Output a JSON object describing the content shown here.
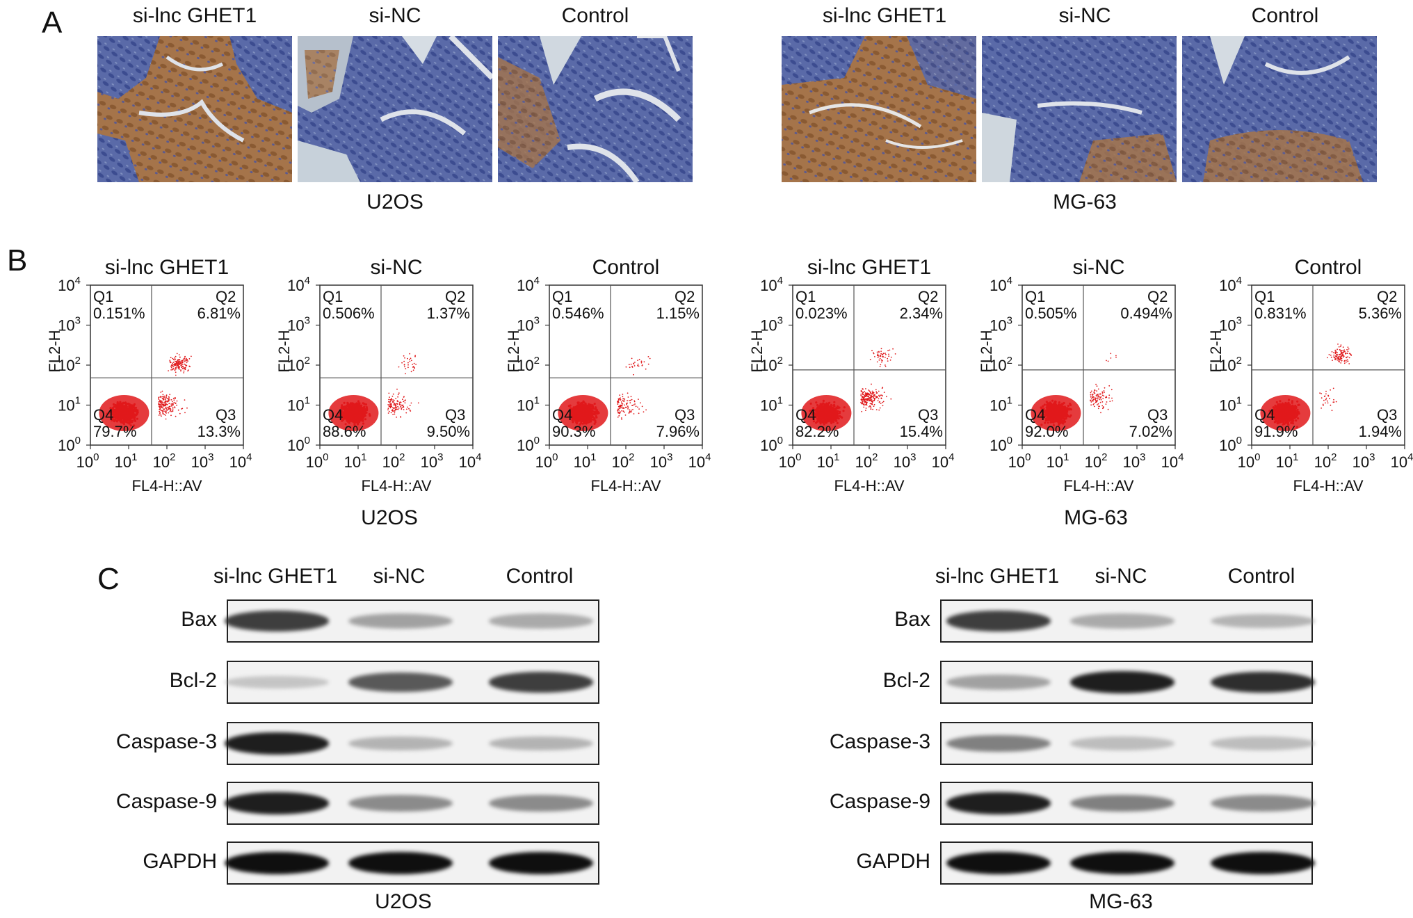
{
  "panels": {
    "a": {
      "letter": "A",
      "groups": [
        {
          "cell_line": "U2OS",
          "images": [
            {
              "label": "si-lnc GHET1",
              "stain": "brown-dominant"
            },
            {
              "label": "si-NC",
              "stain": "blue-dominant"
            },
            {
              "label": "Control",
              "stain": "blue-dominant"
            }
          ]
        },
        {
          "cell_line": "MG-63",
          "images": [
            {
              "label": "si-lnc GHET1",
              "stain": "brown-dominant"
            },
            {
              "label": "si-NC",
              "stain": "blue-dominant"
            },
            {
              "label": "Control",
              "stain": "blue-dominant"
            }
          ]
        }
      ]
    },
    "b": {
      "letter": "B",
      "y_axis_label": "FL2-H",
      "x_axis_label": "FL4-H::AV",
      "tick_labels": [
        "10",
        "10",
        "10",
        "10",
        "10"
      ],
      "tick_exponents": [
        "0",
        "1",
        "2",
        "3",
        "4"
      ],
      "quadrant_names": [
        "Q1",
        "Q2",
        "Q3",
        "Q4"
      ],
      "groups": [
        {
          "cell_line": "U2OS",
          "plots": [
            {
              "title": "si-lnc GHET1",
              "q1": "0.151%",
              "q2": "6.81%",
              "q3": "13.3%",
              "q4": "79.7%"
            },
            {
              "title": "si-NC",
              "q1": "0.506%",
              "q2": "1.37%",
              "q3": "9.50%",
              "q4": "88.6%"
            },
            {
              "title": "Control",
              "q1": "0.546%",
              "q2": "1.15%",
              "q3": "7.96%",
              "q4": "90.3%"
            }
          ]
        },
        {
          "cell_line": "MG-63",
          "plots": [
            {
              "title": "si-lnc GHET1",
              "q1": "0.023%",
              "q2": "2.34%",
              "q3": "15.4%",
              "q4": "82.2%"
            },
            {
              "title": "si-NC",
              "q1": "0.505%",
              "q2": "0.494%",
              "q3": "7.02%",
              "q4": "92.0%"
            },
            {
              "title": "Control",
              "q1": "0.831%",
              "q2": "5.36%",
              "q3": "1.94%",
              "q4": "91.9%"
            }
          ]
        }
      ]
    },
    "c": {
      "letter": "C",
      "groups": [
        {
          "cell_line": "U2OS",
          "lanes": [
            "si-lnc GHET1",
            "si-NC",
            "Control"
          ],
          "blots": [
            {
              "protein": "Bax",
              "intensity": [
                0.85,
                0.45,
                0.4
              ]
            },
            {
              "protein": "Bcl-2",
              "intensity": [
                0.25,
                0.75,
                0.85
              ]
            },
            {
              "protein": "Caspase-3",
              "intensity": [
                0.95,
                0.35,
                0.35
              ]
            },
            {
              "protein": "Caspase-9",
              "intensity": [
                0.95,
                0.55,
                0.55
              ]
            },
            {
              "protein": "GAPDH",
              "intensity": [
                1.0,
                1.0,
                1.0
              ]
            }
          ]
        },
        {
          "cell_line": "MG-63",
          "lanes": [
            "si-lnc GHET1",
            "si-NC",
            "Control"
          ],
          "blots": [
            {
              "protein": "Bax",
              "intensity": [
                0.85,
                0.4,
                0.35
              ]
            },
            {
              "protein": "Bcl-2",
              "intensity": [
                0.45,
                0.95,
                0.9
              ]
            },
            {
              "protein": "Caspase-3",
              "intensity": [
                0.6,
                0.3,
                0.3
              ]
            },
            {
              "protein": "Caspase-9",
              "intensity": [
                0.95,
                0.6,
                0.55
              ]
            },
            {
              "protein": "GAPDH",
              "intensity": [
                1.0,
                1.0,
                1.0
              ]
            }
          ]
        }
      ]
    }
  }
}
